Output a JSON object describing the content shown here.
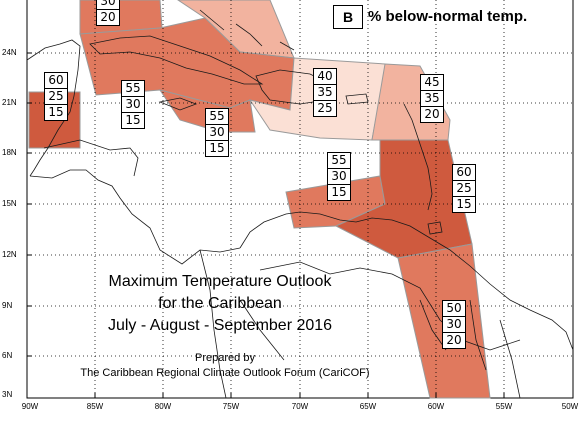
{
  "title": {
    "line1": "Maximum Temperature Outlook",
    "line2": "for the Caribbean",
    "line3": "July - August - September 2016"
  },
  "credit": {
    "line1": "Prepared by",
    "line2": "The Caribbean Regional Climate Outlook Forum (CariCOF)"
  },
  "legend": {
    "symbol": "B",
    "text": "% below-normal temp."
  },
  "axes": {
    "lat_labels": [
      "24N",
      "21N",
      "18N",
      "15N",
      "12N",
      "9N",
      "6N",
      "3N"
    ],
    "lon_labels": [
      "90W",
      "85W",
      "80W",
      "75W",
      "70W",
      "65W",
      "60W",
      "55W",
      "50W"
    ]
  },
  "probability_boxes": [
    {
      "id": "top-left",
      "values": [
        "30",
        "20"
      ]
    },
    {
      "id": "belize",
      "values": [
        "60",
        "25",
        "15"
      ]
    },
    {
      "id": "cuba",
      "values": [
        "55",
        "30",
        "15"
      ]
    },
    {
      "id": "bahamas-south",
      "values": [
        "55",
        "30",
        "15"
      ]
    },
    {
      "id": "hispaniola",
      "values": [
        "40",
        "35",
        "25"
      ]
    },
    {
      "id": "leeward",
      "values": [
        "45",
        "35",
        "20"
      ]
    },
    {
      "id": "abc-islands",
      "values": [
        "55",
        "30",
        "15"
      ]
    },
    {
      "id": "windward",
      "values": [
        "60",
        "25",
        "15"
      ]
    },
    {
      "id": "guianas",
      "values": [
        "50",
        "30",
        "20"
      ]
    }
  ],
  "colors": {
    "dark": "#cf5a3e",
    "medium": "#e0795e",
    "light": "#f2b39f",
    "pale": "#fbe0d5",
    "coast": "#1a1a1a",
    "grid": "#000000"
  }
}
